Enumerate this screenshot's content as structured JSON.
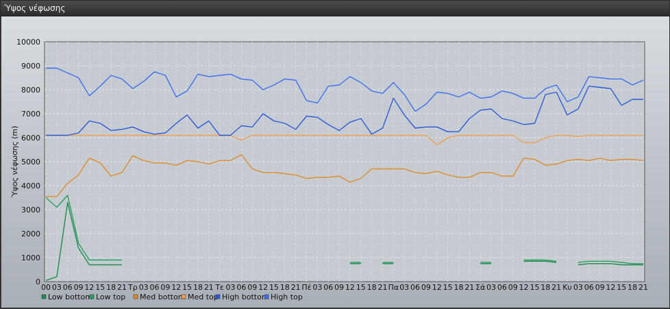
{
  "window": {
    "title": "Ύψος νέφωσης"
  },
  "chart_data": {
    "type": "line",
    "title": "",
    "xlabel": "",
    "ylabel": "Ύψος νέφωσης (m)",
    "ylim": [
      0,
      10000
    ],
    "yticks": [
      "0",
      "1000",
      "2000",
      "3000",
      "4000",
      "5000",
      "6000",
      "7000",
      "8000",
      "9000",
      "10000"
    ],
    "grid": true,
    "legend_position": "bottom-left",
    "x": [
      "00",
      "03",
      "06",
      "09",
      "12",
      "15",
      "18",
      "21",
      "Τρ",
      "03",
      "06",
      "09",
      "12",
      "15",
      "18",
      "21",
      "Τε",
      "03",
      "06",
      "09",
      "12",
      "15",
      "18",
      "21",
      "Πέ",
      "03",
      "06",
      "09",
      "12",
      "15",
      "18",
      "21",
      "Πα",
      "03",
      "06",
      "09",
      "12",
      "15",
      "18",
      "21",
      "Σά",
      "03",
      "06",
      "09",
      "12",
      "15",
      "18",
      "21",
      "Κυ",
      "03",
      "06",
      "09",
      "12",
      "15",
      "18",
      "21"
    ],
    "series": [
      {
        "name": "Low bottom",
        "color": "#1e8a4e",
        "values": [
          50,
          200,
          3300,
          1400,
          700,
          700,
          700,
          700,
          null,
          null,
          null,
          null,
          null,
          null,
          null,
          null,
          null,
          null,
          null,
          null,
          null,
          null,
          null,
          null,
          null,
          null,
          null,
          null,
          750,
          750,
          null,
          750,
          750,
          null,
          null,
          null,
          null,
          null,
          null,
          null,
          750,
          750,
          null,
          null,
          850,
          850,
          850,
          800,
          null,
          700,
          750,
          750,
          750,
          700,
          700,
          700
        ]
      },
      {
        "name": "Low top",
        "color": "#2aa060",
        "values": [
          3500,
          3100,
          3600,
          1600,
          900,
          900,
          900,
          900,
          null,
          null,
          null,
          null,
          null,
          null,
          null,
          null,
          null,
          null,
          null,
          null,
          null,
          null,
          null,
          null,
          null,
          null,
          null,
          null,
          800,
          800,
          null,
          800,
          800,
          null,
          null,
          null,
          null,
          null,
          null,
          null,
          800,
          800,
          null,
          null,
          900,
          900,
          900,
          850,
          null,
          800,
          850,
          850,
          850,
          800,
          750,
          750
        ]
      },
      {
        "name": "Med bottom",
        "color": "#e08a2a",
        "values": [
          3550,
          3550,
          4100,
          4450,
          5150,
          4950,
          4400,
          4550,
          5250,
          5050,
          4950,
          4950,
          4850,
          5050,
          5000,
          4900,
          5050,
          5050,
          5300,
          4700,
          4550,
          4550,
          4500,
          4450,
          4300,
          4350,
          4350,
          4400,
          4150,
          4300,
          4700,
          4700,
          4700,
          4700,
          4550,
          4500,
          4600,
          4450,
          4350,
          4350,
          4550,
          4550,
          4400,
          4400,
          5150,
          5100,
          4850,
          4900,
          5050,
          5100,
          5050,
          5150,
          5050,
          5100,
          5100,
          5050
        ]
      },
      {
        "name": "Med top",
        "color": "#f0a050",
        "values": [
          6100,
          6100,
          6100,
          6100,
          6100,
          6100,
          6100,
          6100,
          6100,
          6100,
          6100,
          6100,
          6100,
          6100,
          6100,
          6100,
          6100,
          6100,
          5900,
          6100,
          6100,
          6100,
          6100,
          6100,
          6100,
          6100,
          6100,
          6100,
          6100,
          6100,
          6100,
          6100,
          6100,
          6100,
          6100,
          6100,
          5700,
          6000,
          6100,
          6100,
          6100,
          6100,
          6100,
          6100,
          5800,
          5800,
          6000,
          6100,
          6100,
          6050,
          6100,
          6100,
          6100,
          6100,
          6100,
          6100
        ]
      },
      {
        "name": "High bottom",
        "color": "#2a5ad8",
        "values": [
          6100,
          6100,
          6100,
          6200,
          6700,
          6600,
          6300,
          6350,
          6450,
          6250,
          6150,
          6200,
          6600,
          6950,
          6400,
          6700,
          6100,
          6100,
          6500,
          6450,
          7000,
          6700,
          6600,
          6350,
          6900,
          6850,
          6550,
          6300,
          6650,
          6800,
          6150,
          6400,
          7650,
          6950,
          6400,
          6450,
          6450,
          6250,
          6250,
          6800,
          7150,
          7200,
          6800,
          6700,
          6550,
          6600,
          7800,
          7900,
          6950,
          7200,
          8150,
          8100,
          8050,
          7350,
          7600,
          7600
        ]
      },
      {
        "name": "High top",
        "color": "#3c70f0",
        "values": [
          8900,
          8900,
          8700,
          8500,
          7750,
          8150,
          8600,
          8450,
          8050,
          8350,
          8750,
          8600,
          7700,
          7950,
          8650,
          8550,
          8600,
          8650,
          8450,
          8400,
          8000,
          8200,
          8450,
          8400,
          7550,
          7450,
          8150,
          8200,
          8550,
          8300,
          7950,
          7850,
          8300,
          7800,
          7100,
          7400,
          7900,
          7850,
          7700,
          7900,
          7650,
          7700,
          7950,
          7850,
          7650,
          7650,
          8050,
          8200,
          7500,
          7700,
          8550,
          8500,
          8450,
          8450,
          8200,
          8400
        ]
      }
    ]
  }
}
